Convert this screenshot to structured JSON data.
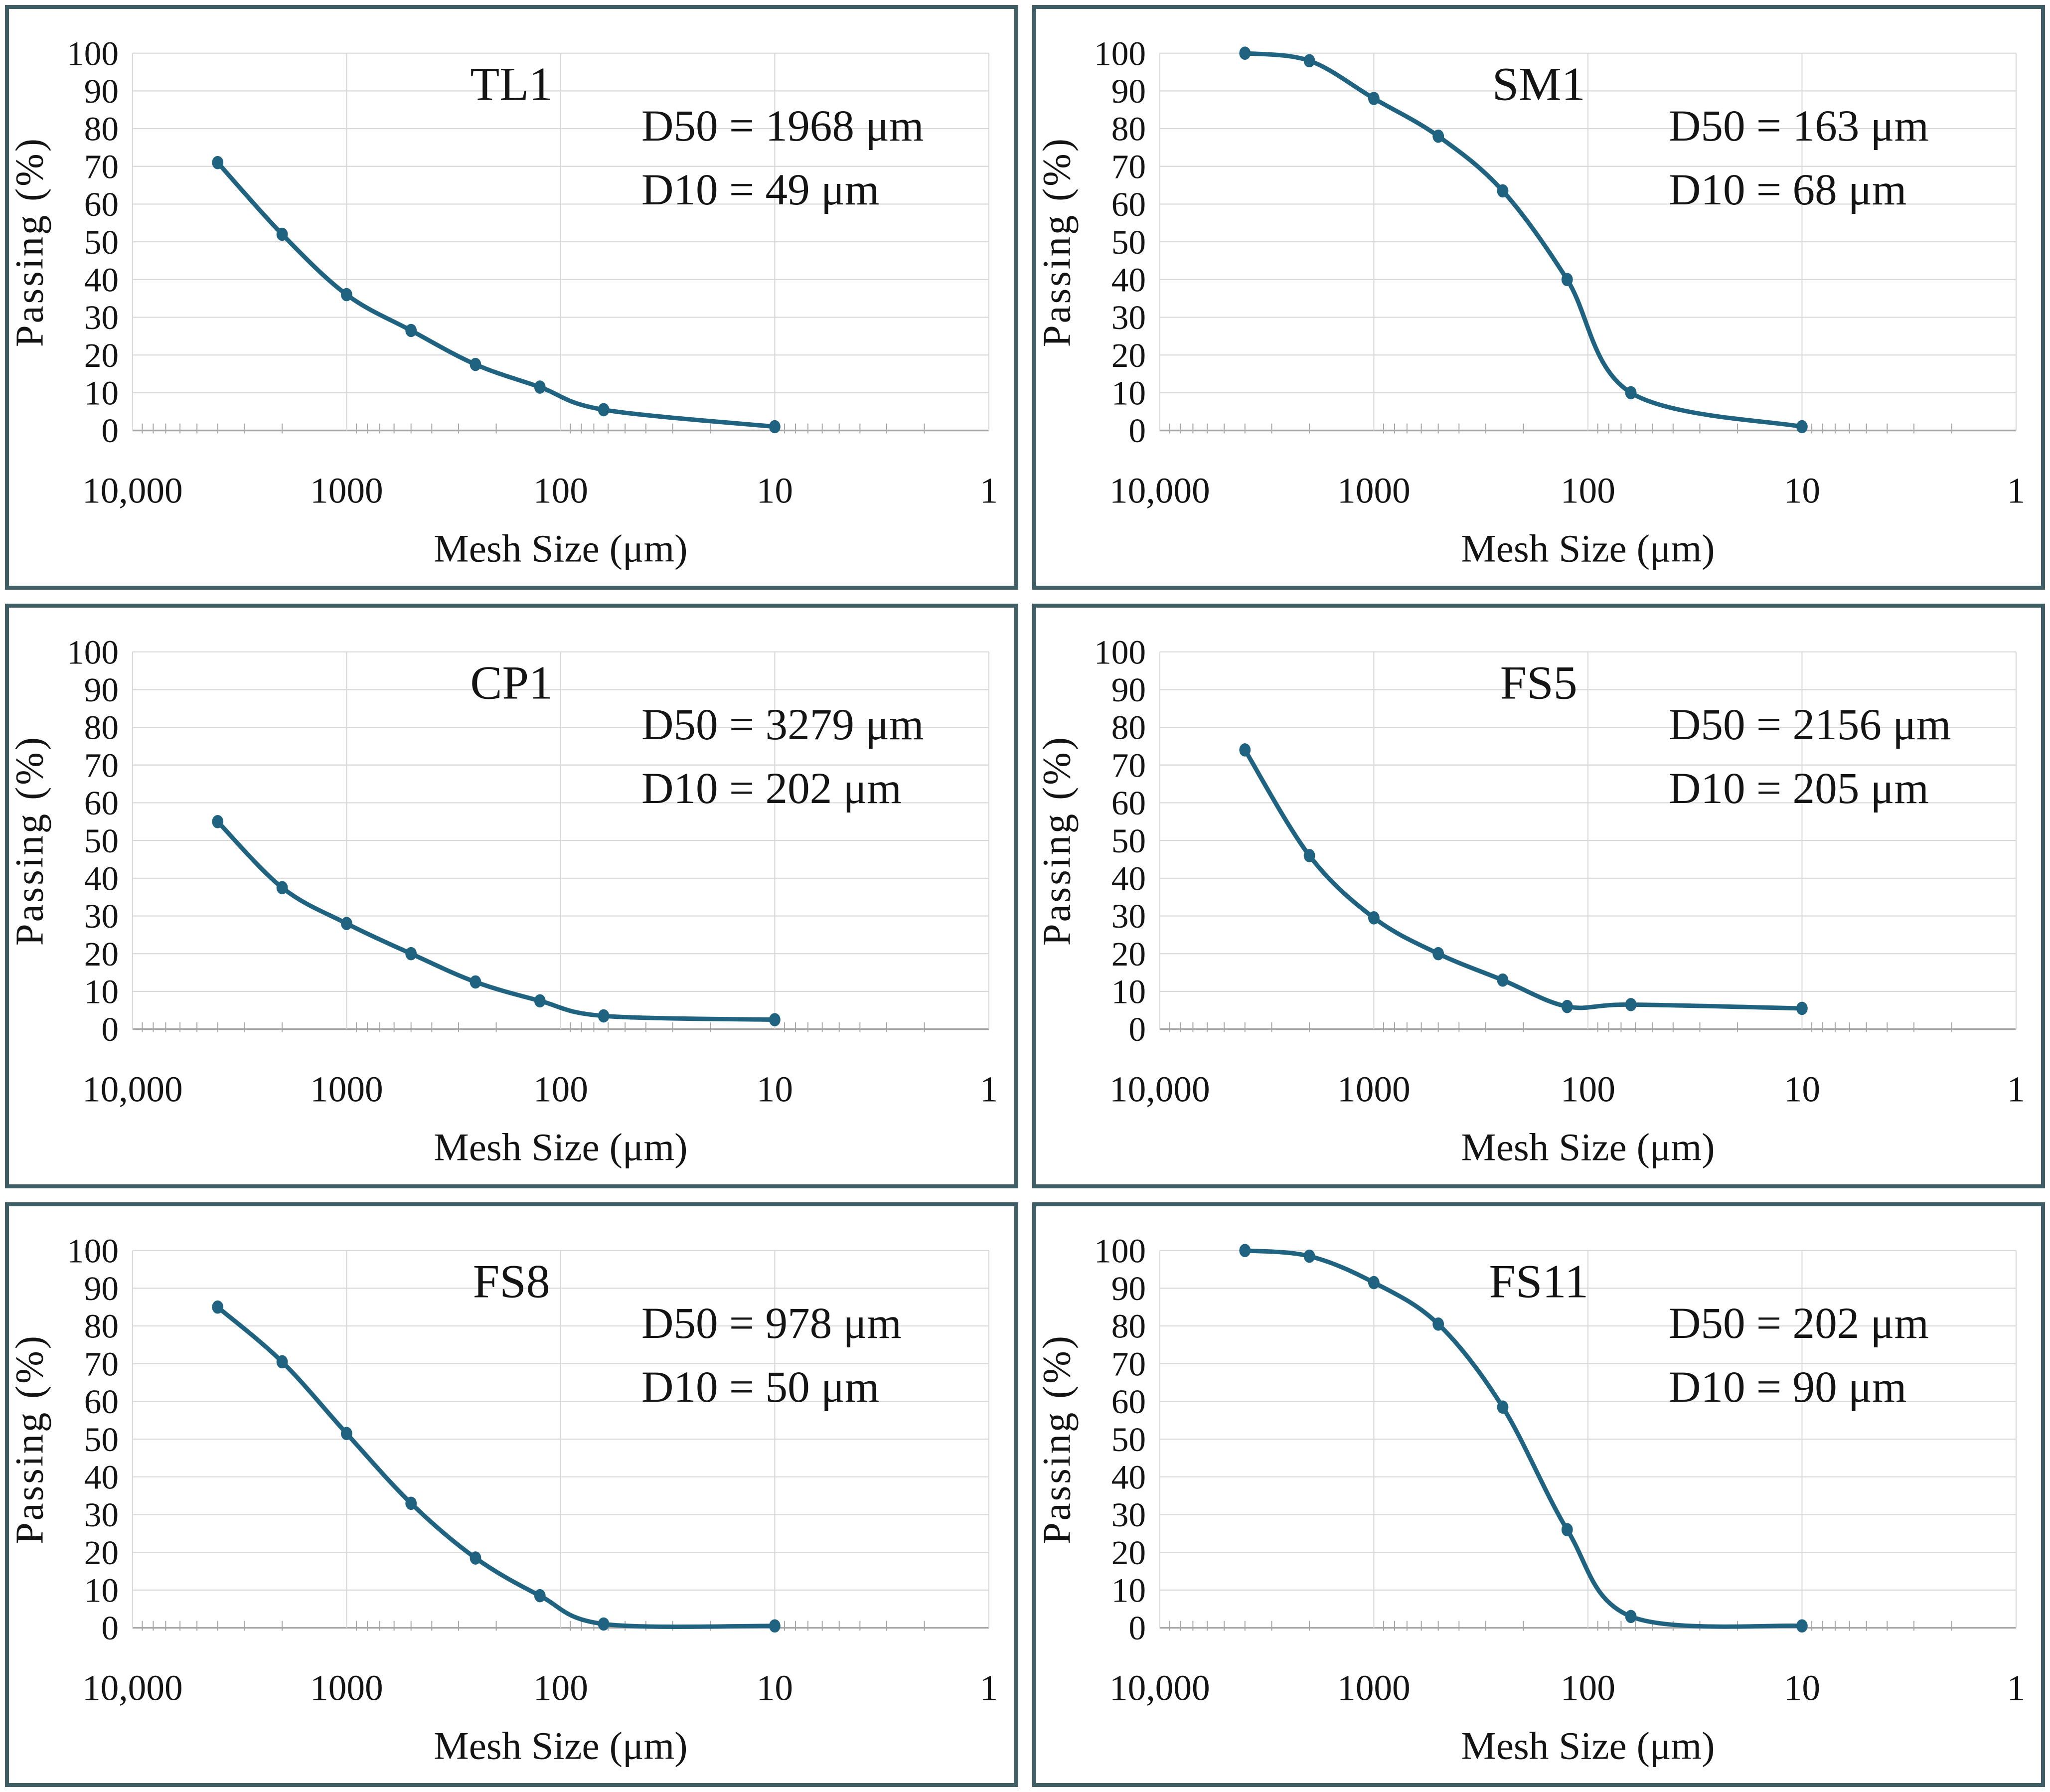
{
  "figure": {
    "layout": "2x3-grid",
    "colors": {
      "line": "#1f6381",
      "marker": "#1f6381",
      "panel_border": "#3f5d64",
      "grid": "#d9d9d9",
      "axis": "#a6a6a6",
      "minor_tick": "#a6a6a6",
      "text": "#141414"
    },
    "x_axis_label": "Mesh Size (μm)",
    "y_axis_label": "Passing (%)",
    "x_tick_labels": [
      "10,000",
      "1000",
      "100",
      "10",
      "1"
    ],
    "y_tick_values": [
      0,
      10,
      20,
      30,
      40,
      50,
      60,
      70,
      80,
      90,
      100
    ]
  },
  "chart_data": [
    {
      "type": "line",
      "title": "TL1",
      "annotations": [
        "D50 = 1968 μm",
        "D10 = 49 μm"
      ],
      "d50_um": 1968,
      "d10_um": 49,
      "x": [
        4000,
        2000,
        1000,
        500,
        250,
        125,
        63,
        10
      ],
      "y": [
        71,
        52,
        36,
        26.5,
        17.5,
        11.5,
        5.5,
        1
      ],
      "xlabel": "Mesh Size (μm)",
      "ylabel": "Passing (%)",
      "xlim": [
        10000,
        1
      ],
      "ylim": [
        0,
        100
      ],
      "xscale": "log-reversed",
      "grid": true,
      "legend": "none"
    },
    {
      "type": "line",
      "title": "SM1",
      "annotations": [
        "D50 = 163 μm",
        "D10 = 68 μm"
      ],
      "d50_um": 163,
      "d10_um": 68,
      "x": [
        4000,
        2000,
        1000,
        500,
        250,
        125,
        63,
        10
      ],
      "y": [
        100,
        98,
        88,
        78,
        63.5,
        40,
        10,
        1
      ],
      "xlabel": "Mesh Size (μm)",
      "ylabel": "Passing (%)",
      "xlim": [
        10000,
        1
      ],
      "ylim": [
        0,
        100
      ],
      "xscale": "log-reversed",
      "grid": true,
      "legend": "none"
    },
    {
      "type": "line",
      "title": "CP1",
      "annotations": [
        "D50 = 3279 μm",
        "D10 = 202 μm"
      ],
      "d50_um": 3279,
      "d10_um": 202,
      "x": [
        4000,
        2000,
        1000,
        500,
        250,
        125,
        63,
        10
      ],
      "y": [
        55,
        37.5,
        28,
        20,
        12.5,
        7.5,
        3.5,
        2.5
      ],
      "xlabel": "Mesh Size (μm)",
      "ylabel": "Passing (%)",
      "xlim": [
        10000,
        1
      ],
      "ylim": [
        0,
        100
      ],
      "xscale": "log-reversed",
      "grid": true,
      "legend": "none"
    },
    {
      "type": "line",
      "title": "FS5",
      "annotations": [
        "D50 = 2156 μm",
        "D10 = 205 μm"
      ],
      "d50_um": 2156,
      "d10_um": 205,
      "x": [
        4000,
        2000,
        1000,
        500,
        250,
        125,
        63,
        10
      ],
      "y": [
        74,
        46,
        29.5,
        20,
        13,
        6,
        6.5,
        5.5
      ],
      "xlabel": "Mesh Size (μm)",
      "ylabel": "Passing (%)",
      "xlim": [
        10000,
        1
      ],
      "ylim": [
        0,
        100
      ],
      "xscale": "log-reversed",
      "grid": true,
      "legend": "none"
    },
    {
      "type": "line",
      "title": "FS8",
      "annotations": [
        "D50 = 978 μm",
        "D10 = 50 μm"
      ],
      "d50_um": 978,
      "d10_um": 50,
      "x": [
        4000,
        2000,
        1000,
        500,
        250,
        125,
        63,
        10
      ],
      "y": [
        85,
        70.5,
        51.5,
        33,
        18.5,
        8.5,
        1,
        0.5
      ],
      "xlabel": "Mesh Size (μm)",
      "ylabel": "Passing (%)",
      "xlim": [
        10000,
        1
      ],
      "ylim": [
        0,
        100
      ],
      "xscale": "log-reversed",
      "grid": true,
      "legend": "none"
    },
    {
      "type": "line",
      "title": "FS11",
      "annotations": [
        "D50 = 202 μm",
        "D10 = 90 μm"
      ],
      "d50_um": 202,
      "d10_um": 90,
      "x": [
        4000,
        2000,
        1000,
        500,
        250,
        125,
        63,
        10
      ],
      "y": [
        100,
        98.5,
        91.5,
        80.5,
        58.5,
        26,
        3,
        0.5
      ],
      "xlabel": "Mesh Size (μm)",
      "ylabel": "Passing (%)",
      "xlim": [
        10000,
        1
      ],
      "ylim": [
        0,
        100
      ],
      "xscale": "log-reversed",
      "grid": true,
      "legend": "none"
    }
  ]
}
